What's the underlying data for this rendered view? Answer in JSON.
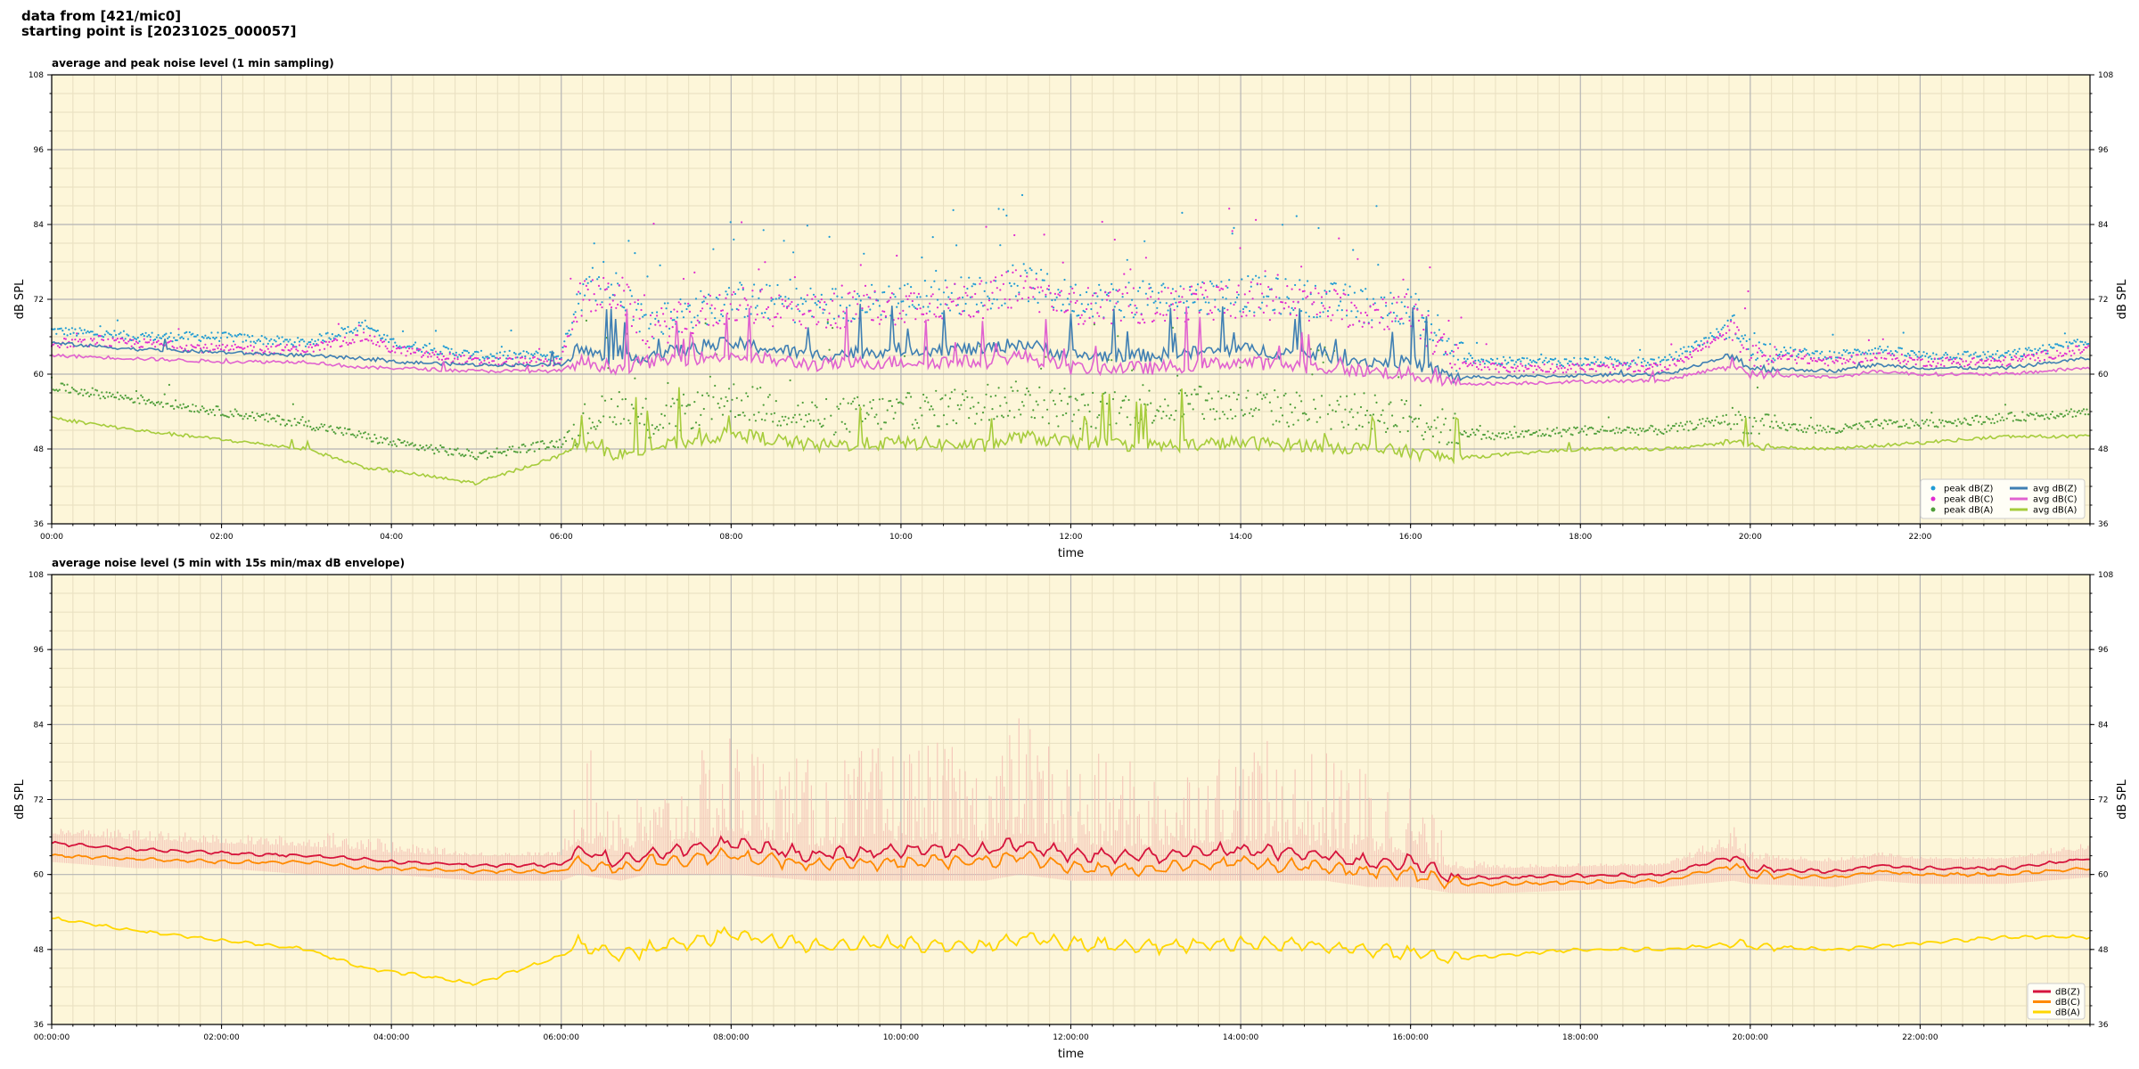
{
  "header": {
    "line1": "data from [421/mic0]",
    "line2": "starting point is [20231025_000057]"
  },
  "chart_data": [
    {
      "type": "scatter",
      "title": "average and peak noise level (1 min sampling)",
      "xlabel": "time",
      "ylabel": "dB SPL",
      "xlim_hours": [
        0,
        24
      ],
      "ylim": [
        36,
        108
      ],
      "yticks": [
        36,
        48,
        60,
        72,
        84,
        96,
        108
      ],
      "xtick_labels": [
        "00:00",
        "02:00",
        "04:00",
        "06:00",
        "08:00",
        "10:00",
        "12:00",
        "14:00",
        "16:00",
        "18:00",
        "20:00",
        "22:00"
      ],
      "grid": true,
      "legend_position": "lower-right",
      "background": "#fdf6d9",
      "x_hours": [
        0,
        1,
        2,
        3,
        3.7,
        4,
        5,
        6,
        6.2,
        6.7,
        7,
        8,
        9,
        10,
        11,
        11.4,
        12,
        13,
        14,
        15,
        15.5,
        16,
        16.5,
        17,
        18,
        19,
        19.8,
        20,
        21,
        21.5,
        22,
        23,
        23.95
      ],
      "series": [
        {
          "name": "peak dB(Z)",
          "kind": "scatter",
          "color": "#1f9bd4",
          "values": [
            67,
            66,
            66,
            65,
            68,
            65,
            63,
            63,
            73,
            74,
            68,
            72,
            71,
            72,
            73,
            75,
            72,
            72,
            73,
            72,
            71,
            71,
            63,
            62,
            62,
            62,
            68,
            64,
            63,
            64,
            63,
            63,
            65
          ]
        },
        {
          "name": "peak dB(C)",
          "kind": "scatter",
          "color": "#e02ad0",
          "values": [
            65,
            65,
            64,
            64,
            66,
            64,
            62,
            62,
            72,
            73,
            67,
            71,
            70,
            71,
            72,
            74,
            71,
            71,
            72,
            71,
            70,
            70,
            62,
            61,
            61,
            61,
            67,
            63,
            62,
            63,
            62,
            62,
            64
          ]
        },
        {
          "name": "peak dB(A)",
          "kind": "scatter",
          "color": "#4f9e3a",
          "values": [
            58,
            56,
            54,
            52,
            50,
            49,
            47,
            49,
            52,
            55,
            52,
            56,
            53,
            54,
            55,
            56,
            54,
            55,
            55,
            54,
            54,
            53,
            51,
            50,
            51,
            51,
            53,
            52,
            51,
            52,
            52,
            53,
            54
          ]
        },
        {
          "name": "avg dB(Z)",
          "kind": "line",
          "color": "#3f7fb3",
          "values": [
            65,
            64,
            63.5,
            63,
            62.5,
            62,
            61.5,
            61.5,
            64,
            62,
            63,
            65,
            63,
            64,
            64,
            65,
            63,
            63,
            64,
            63,
            62,
            62,
            59.5,
            59.5,
            59.8,
            60,
            63,
            61,
            60.5,
            61.5,
            61,
            61,
            62.5
          ]
        },
        {
          "name": "avg dB(C)",
          "kind": "line",
          "color": "#e062d0",
          "values": [
            63,
            62.5,
            62,
            62,
            61,
            61,
            60.5,
            60.5,
            62,
            61,
            62,
            63,
            61.5,
            62,
            62,
            63,
            61,
            61,
            62,
            61,
            60.5,
            60,
            58.5,
            58.5,
            58.8,
            59,
            61.5,
            60,
            59.5,
            60.5,
            60,
            60,
            61
          ]
        },
        {
          "name": "avg dB(A)",
          "kind": "line",
          "color": "#a6cc3c",
          "values": [
            53,
            51,
            49.5,
            48,
            45,
            44.5,
            42.5,
            47,
            49,
            47,
            48,
            50.5,
            48.5,
            49,
            48.5,
            50,
            49,
            48.5,
            49,
            48.5,
            48,
            47.5,
            46.5,
            47,
            48,
            48,
            49,
            48.5,
            48,
            48.5,
            49,
            50,
            50
          ]
        }
      ]
    },
    {
      "type": "area",
      "title": "average noise level (5 min with 15s min/max dB envelope)",
      "xlabel": "time",
      "ylabel": "dB SPL",
      "xlim_hours": [
        0,
        24
      ],
      "ylim": [
        36,
        108
      ],
      "yticks": [
        36,
        48,
        60,
        72,
        84,
        96,
        108
      ],
      "xtick_labels": [
        "00:00:00",
        "02:00:00",
        "04:00:00",
        "06:00:00",
        "08:00:00",
        "10:00:00",
        "12:00:00",
        "14:00:00",
        "16:00:00",
        "18:00:00",
        "20:00:00",
        "22:00:00"
      ],
      "grid": true,
      "legend_position": "lower-right",
      "background": "#fdf6d9",
      "x_hours": [
        0,
        1,
        2,
        3,
        3.7,
        4,
        5,
        6,
        6.2,
        6.7,
        7,
        8,
        9,
        10,
        11,
        11.4,
        12,
        13,
        14,
        15,
        15.5,
        16,
        16.5,
        17,
        18,
        19,
        19.8,
        20,
        21,
        21.5,
        22,
        23,
        23.95
      ],
      "envelope": {
        "color": "#f4c2b6",
        "max": [
          68,
          68,
          67,
          67,
          69,
          66,
          64,
          64,
          82,
          75,
          72,
          84,
          78,
          82,
          80,
          86,
          80,
          78,
          82,
          80,
          78,
          76,
          64,
          62,
          62,
          62,
          68,
          64,
          63,
          64,
          63,
          63,
          66
        ],
        "min": [
          62,
          61,
          61,
          60,
          60,
          60,
          59,
          59,
          60,
          59,
          60,
          60,
          59,
          59,
          59,
          60,
          59,
          59,
          59,
          59,
          58,
          58,
          57,
          57,
          57.5,
          58,
          59,
          58.5,
          58,
          59,
          58.5,
          58.5,
          59.5
        ]
      },
      "series": [
        {
          "name": "dB(Z)",
          "color": "#d6143c",
          "values": [
            65,
            64,
            63.5,
            63,
            62.5,
            62,
            61.5,
            61.5,
            64,
            62,
            63,
            65,
            63,
            64,
            64,
            65,
            63,
            63,
            64,
            63,
            62,
            62,
            59.5,
            59.5,
            59.8,
            60,
            63,
            61,
            60.5,
            61.5,
            61,
            61,
            62.5
          ]
        },
        {
          "name": "dB(C)",
          "color": "#ff8a00",
          "values": [
            63,
            62.5,
            62,
            62,
            61,
            61,
            60.5,
            60.5,
            62,
            61,
            62,
            63,
            61.5,
            62,
            62,
            63,
            61,
            61,
            62,
            61,
            60.5,
            60,
            58.5,
            58.5,
            58.8,
            59,
            61.5,
            60,
            59.5,
            60.5,
            60,
            60,
            61
          ]
        },
        {
          "name": "dB(A)",
          "color": "#ffd700",
          "values": [
            53,
            51,
            49.5,
            48,
            45,
            44.5,
            42.5,
            47,
            49,
            47,
            48,
            50.5,
            48.5,
            49,
            48.5,
            50,
            49,
            48.5,
            49,
            48.5,
            48,
            47.5,
            46.5,
            47,
            48,
            48,
            49,
            48.5,
            48,
            48.5,
            49,
            50,
            50
          ]
        }
      ]
    }
  ]
}
